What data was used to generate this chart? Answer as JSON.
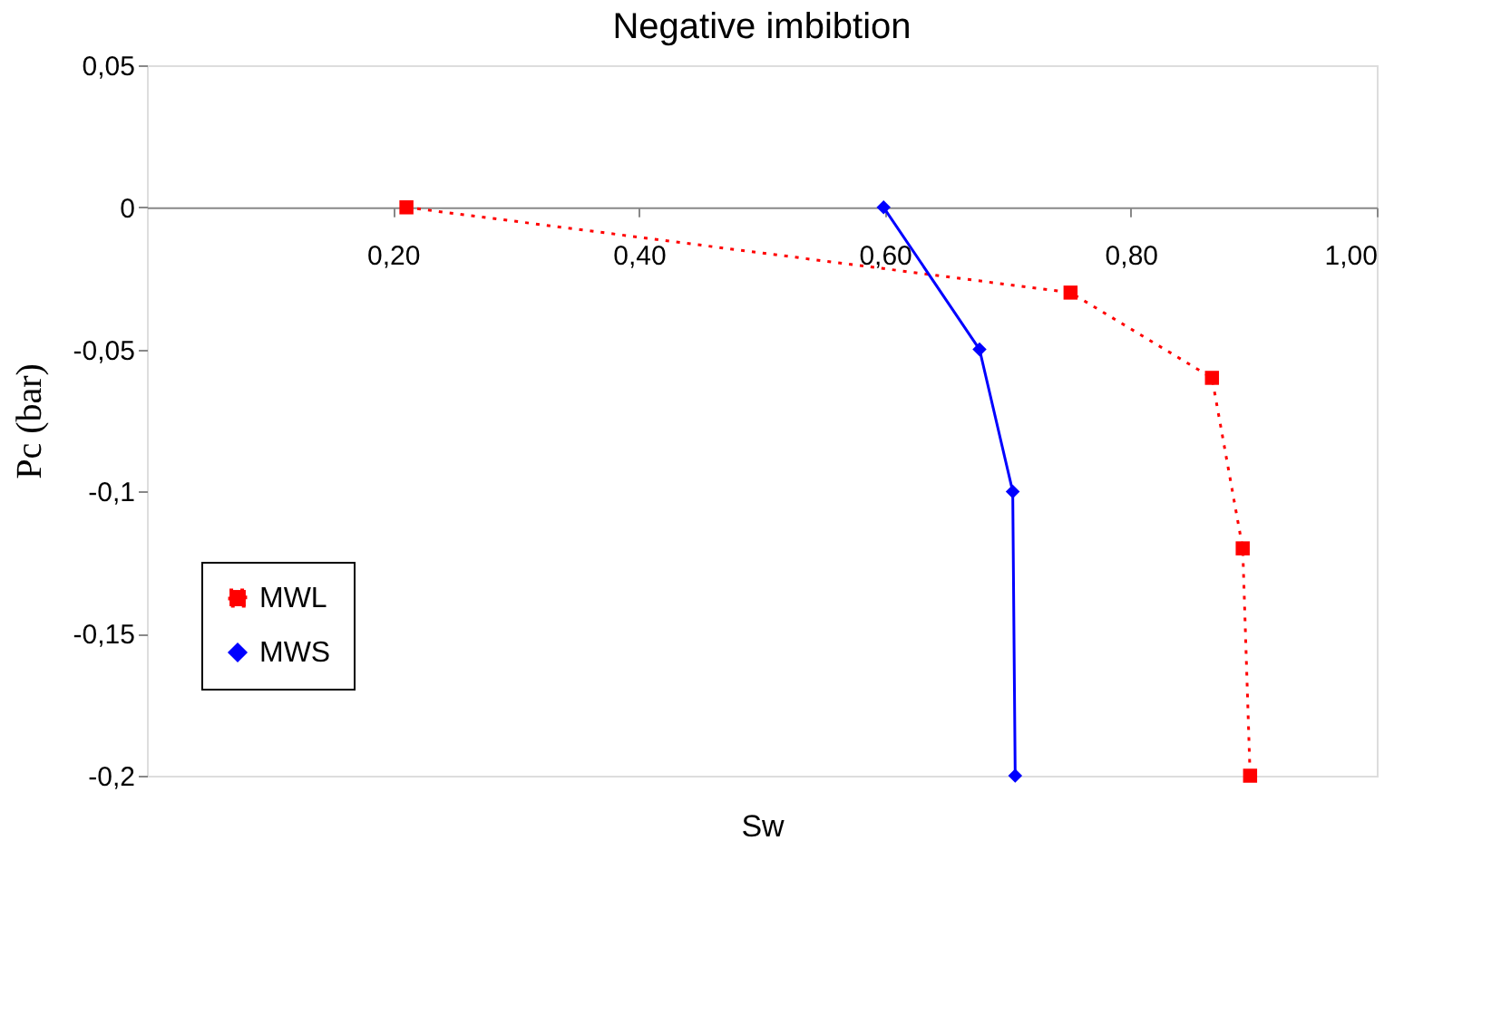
{
  "chart_data": {
    "type": "line",
    "title": "Negative imbibtion",
    "xlabel": "Sw",
    "ylabel": "Pc (bar)",
    "xlim": [
      0,
      1
    ],
    "ylim": [
      -0.2,
      0.05
    ],
    "xticks": [
      {
        "value": 0.2,
        "label": "0,20"
      },
      {
        "value": 0.4,
        "label": "0,40"
      },
      {
        "value": 0.6,
        "label": "0,60"
      },
      {
        "value": 0.8,
        "label": "0,80"
      },
      {
        "value": 1.0,
        "label": "1,00"
      }
    ],
    "yticks": [
      {
        "value": 0.05,
        "label": "0,05"
      },
      0,
      {
        "value": -0.05,
        "label": "-0,05"
      },
      {
        "value": -0.1,
        "label": "-0,1"
      },
      {
        "value": -0.15,
        "label": "-0,15"
      },
      {
        "value": -0.2,
        "label": "-0,2"
      }
    ],
    "grid": false,
    "legend": "bottom left",
    "series": [
      {
        "name": "MWL",
        "color": "#ff0000",
        "marker": "square",
        "line_style": "dotted",
        "x": [
          0.211,
          0.751,
          0.866,
          0.891,
          0.897
        ],
        "values": [
          0,
          -0.03,
          -0.06,
          -0.12,
          -0.2
        ]
      },
      {
        "name": "MWS",
        "color": "#0000ff",
        "marker": "diamond",
        "line_style": "solid",
        "x": [
          0.599,
          0.677,
          0.704,
          0.706
        ],
        "values": [
          0,
          -0.05,
          -0.1,
          -0.2
        ]
      }
    ]
  }
}
